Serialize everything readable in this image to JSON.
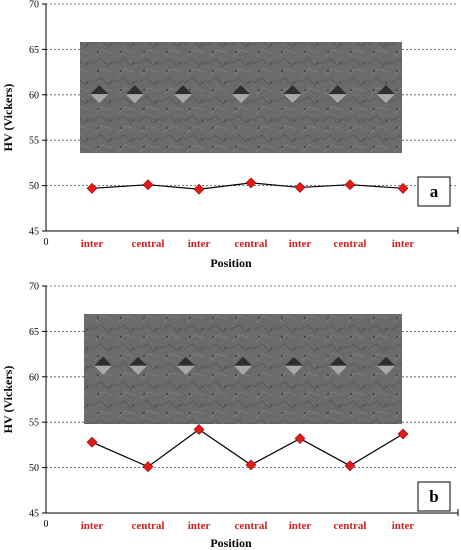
{
  "chart_data": [
    {
      "type": "line",
      "panel_label": "a",
      "ylabel": "HV (Vickers)",
      "xlabel": "Position",
      "ylim": [
        45,
        70
      ],
      "yticks": [
        "45",
        "50",
        "55",
        "60",
        "65",
        "70"
      ],
      "x_origin_label": "0",
      "categories": [
        "inter",
        "central",
        "inter",
        "central",
        "inter",
        "central",
        "inter"
      ],
      "values": [
        49.7,
        50.1,
        49.6,
        50.3,
        49.8,
        50.1,
        49.7
      ],
      "grid": "horizontal dotted",
      "marker": "diamond",
      "colors": {
        "marker": "#e01b1b",
        "line": "#000000",
        "inset": "#6b6b6b"
      }
    },
    {
      "type": "line",
      "panel_label": "b",
      "ylabel": "HV (Vickers)",
      "xlabel": "Position",
      "ylim": [
        45,
        70
      ],
      "yticks": [
        "45",
        "50",
        "55",
        "60",
        "65",
        "70"
      ],
      "x_origin_label": "0",
      "categories": [
        "inter",
        "central",
        "inter",
        "central",
        "inter",
        "central",
        "inter"
      ],
      "values": [
        52.8,
        50.1,
        54.2,
        50.3,
        53.2,
        50.2,
        53.7
      ],
      "grid": "horizontal dotted",
      "marker": "diamond",
      "colors": {
        "marker": "#e01b1b",
        "line": "#000000",
        "inset": "#6b6b6b"
      }
    }
  ]
}
